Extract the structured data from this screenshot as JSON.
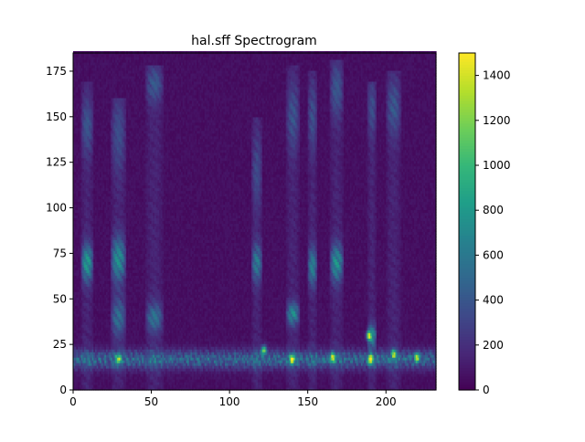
{
  "chart_data": {
    "type": "heatmap",
    "title": "hal.sff Spectrogram",
    "xlabel": "",
    "ylabel": "",
    "xlim": [
      0,
      232
    ],
    "ylim": [
      0,
      185
    ],
    "x_ticks": [
      0,
      50,
      100,
      150,
      200
    ],
    "y_ticks": [
      0,
      25,
      50,
      75,
      100,
      125,
      150,
      175
    ],
    "colormap": "viridis",
    "colorbar": {
      "min": 0,
      "max": 1500,
      "ticks": [
        0,
        200,
        400,
        600,
        800,
        1000,
        1200,
        1400
      ]
    },
    "colors": [
      "#440154",
      "#482878",
      "#3e4989",
      "#31688e",
      "#26828e",
      "#1f9e89",
      "#35b779",
      "#6ece58",
      "#b5de2b",
      "#fde725"
    ],
    "background_level": 60,
    "low_band": {
      "y_min": 8,
      "y_max": 28,
      "center": 17,
      "level": 480
    },
    "speech_segments": [
      {
        "x_start": 5,
        "x_end": 13,
        "y_max": 170,
        "formants": [
          {
            "center": 70,
            "width": 10,
            "level": 750
          },
          {
            "center": 145,
            "width": 15,
            "level": 300
          }
        ]
      },
      {
        "x_start": 24,
        "x_end": 34,
        "y_max": 160,
        "formants": [
          {
            "center": 72,
            "width": 12,
            "level": 680
          },
          {
            "center": 40,
            "width": 10,
            "level": 450
          },
          {
            "center": 140,
            "width": 20,
            "level": 250
          }
        ]
      },
      {
        "x_start": 46,
        "x_end": 58,
        "y_max": 178,
        "formants": [
          {
            "center": 40,
            "width": 8,
            "level": 480
          },
          {
            "center": 168,
            "width": 10,
            "level": 320
          }
        ]
      },
      {
        "x_start": 114,
        "x_end": 121,
        "y_max": 150,
        "formants": [
          {
            "center": 70,
            "width": 10,
            "level": 550
          },
          {
            "center": 120,
            "width": 20,
            "level": 230
          }
        ]
      },
      {
        "x_start": 136,
        "x_end": 145,
        "y_max": 178,
        "formants": [
          {
            "center": 42,
            "width": 6,
            "level": 650
          },
          {
            "center": 150,
            "width": 18,
            "level": 280
          }
        ]
      },
      {
        "x_start": 150,
        "x_end": 156,
        "y_max": 175,
        "formants": [
          {
            "center": 68,
            "width": 10,
            "level": 600
          },
          {
            "center": 150,
            "width": 18,
            "level": 260
          }
        ]
      },
      {
        "x_start": 164,
        "x_end": 173,
        "y_max": 182,
        "formants": [
          {
            "center": 70,
            "width": 10,
            "level": 700
          },
          {
            "center": 165,
            "width": 15,
            "level": 300
          }
        ]
      },
      {
        "x_start": 188,
        "x_end": 194,
        "y_max": 170,
        "formants": [
          {
            "center": 30,
            "width": 6,
            "level": 650
          },
          {
            "center": 155,
            "width": 15,
            "level": 250
          }
        ]
      },
      {
        "x_start": 200,
        "x_end": 210,
        "y_max": 175,
        "formants": [
          {
            "center": 155,
            "width": 15,
            "level": 300
          }
        ]
      }
    ],
    "hotspots": [
      {
        "x": 29,
        "y": 17,
        "value": 1200
      },
      {
        "x": 122,
        "y": 22,
        "value": 1350
      },
      {
        "x": 140,
        "y": 17,
        "value": 1450
      },
      {
        "x": 166,
        "y": 18,
        "value": 1300
      },
      {
        "x": 189,
        "y": 30,
        "value": 1250
      },
      {
        "x": 190,
        "y": 17,
        "value": 1500
      },
      {
        "x": 205,
        "y": 20,
        "value": 1200
      },
      {
        "x": 220,
        "y": 18,
        "value": 1250
      }
    ]
  }
}
